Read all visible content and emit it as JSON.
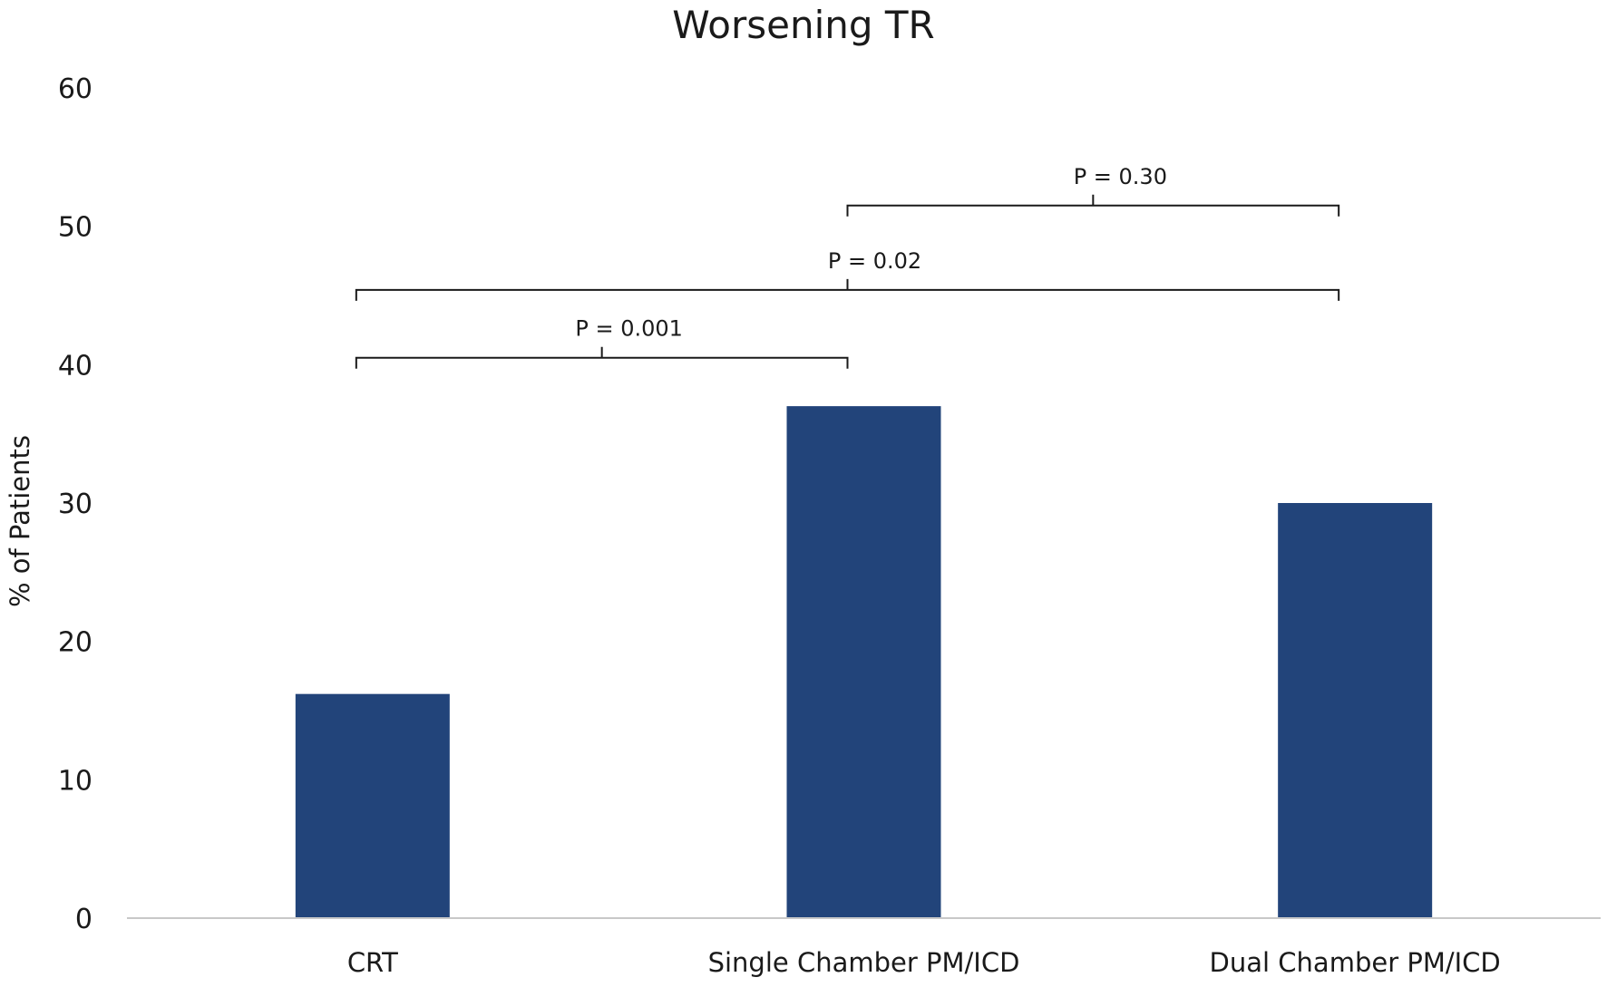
{
  "chart_data": {
    "type": "bar",
    "title": "Worsening TR",
    "xlabel": "",
    "ylabel": "% of Patients",
    "categories": [
      "CRT",
      "Single Chamber PM/ICD",
      "Dual Chamber PM/ICD"
    ],
    "values": [
      16.2,
      37,
      30
    ],
    "ylim": [
      0,
      60
    ],
    "yticks": [
      "0",
      "10",
      "20",
      "30",
      "40",
      "50",
      "60"
    ],
    "grid": false,
    "legend": "none",
    "bar_color": "#22447a",
    "comparisons": [
      {
        "from": 0,
        "to": 1,
        "label": "P = 0.001",
        "level": 40.5
      },
      {
        "from": 0,
        "to": 2,
        "label": "P = 0.02",
        "level": 45.4
      },
      {
        "from": 1,
        "to": 2,
        "label": "P = 0.30",
        "level": 51.5
      }
    ]
  }
}
